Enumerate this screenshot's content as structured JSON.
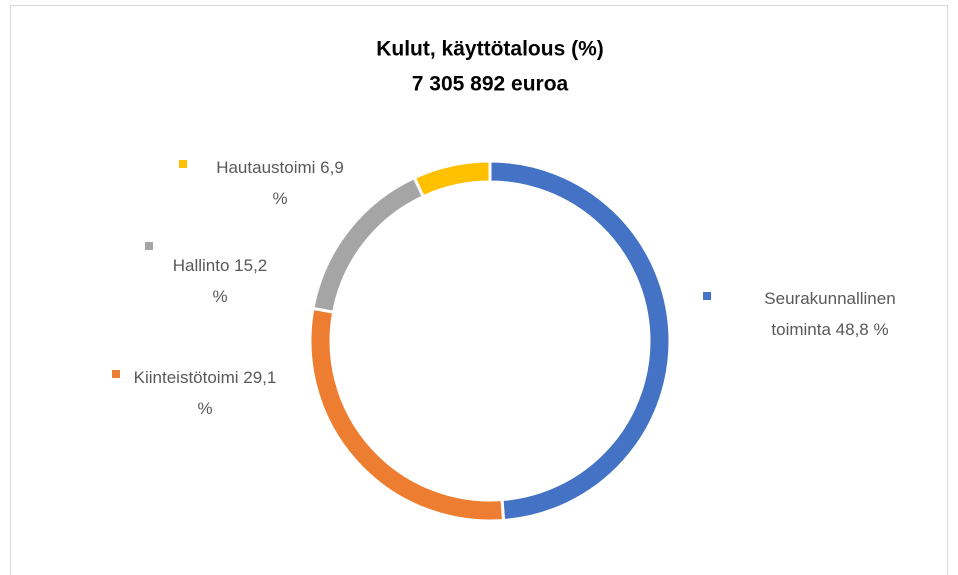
{
  "chart_data": {
    "type": "donut",
    "title": "Kulut, käyttötalous (%)",
    "subtitle": "7 305 892 euroa",
    "categories": [
      "Seurakunnallinen toiminta",
      "Kiinteistötoimi",
      "Hallinto",
      "Hautaustoimi"
    ],
    "values": [
      48.8,
      29.1,
      15.2,
      6.9
    ],
    "value_labels": [
      "48,8 %",
      "29,1 %",
      "15,2 %",
      "6,9 %"
    ],
    "colors": [
      "#4472c4",
      "#ed7d31",
      "#a5a5a5",
      "#ffc000"
    ]
  }
}
